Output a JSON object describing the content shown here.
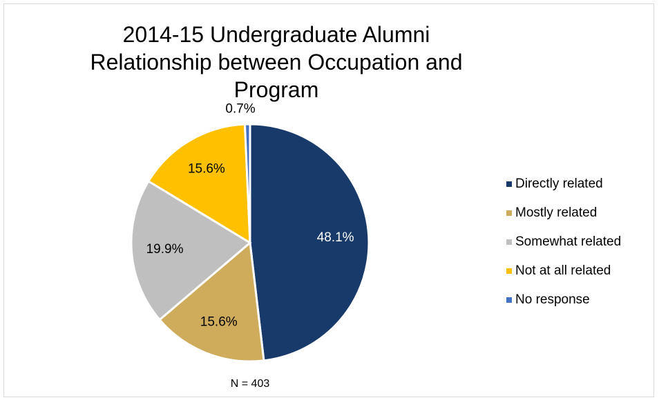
{
  "chart_data": {
    "type": "pie",
    "title": "2014-15 Undergraduate Alumni Relationship between Occupation and Program",
    "categories": [
      "Directly related",
      "Mostly related",
      "Somewhat related",
      "Not at all related",
      "No response"
    ],
    "values": [
      48.1,
      15.6,
      19.9,
      15.6,
      0.7
    ],
    "value_labels": [
      "48.1%",
      "15.6%",
      "19.9%",
      "15.6%",
      "0.7%"
    ],
    "colors": [
      "#173a6a",
      "#cfab5c",
      "#bfbfbf",
      "#ffc000",
      "#4472c4"
    ],
    "label_colors": [
      "#ffffff",
      "#000000",
      "#000000",
      "#000000",
      "#000000"
    ],
    "annotation": "N = 403",
    "legend": "right"
  }
}
